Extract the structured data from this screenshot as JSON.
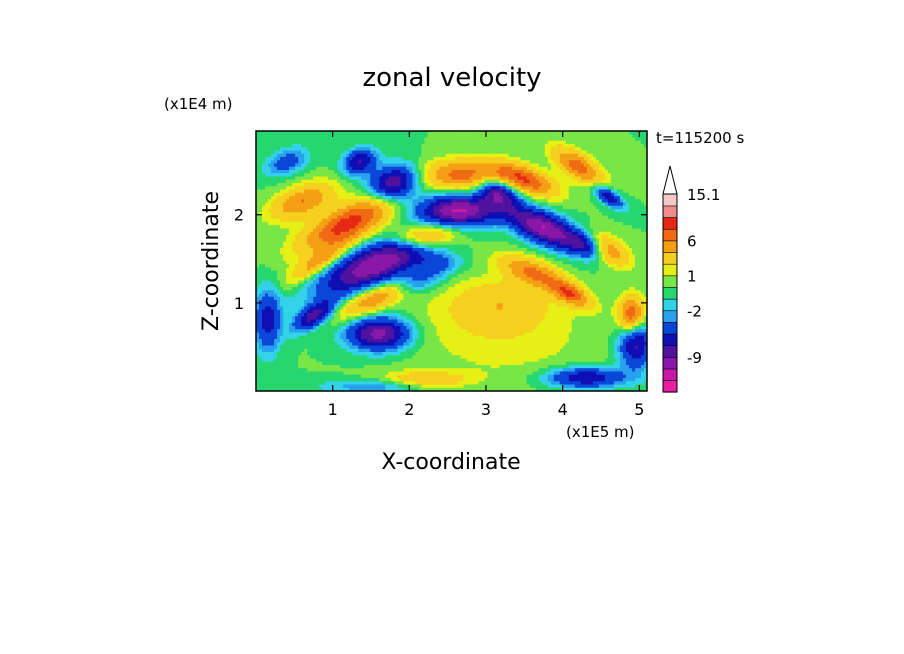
{
  "chart_data": {
    "type": "heatmap",
    "title": "zonal velocity",
    "xlabel": "X-coordinate",
    "ylabel": "Z-coordinate",
    "x_scale_label": "(x1E5 m)",
    "y_scale_label": "(x1E4 m)",
    "time_label": "t=115200 s",
    "xlim": [
      0,
      5.1
    ],
    "ylim": [
      0,
      2.95
    ],
    "x_ticks": [
      1,
      2,
      3,
      4,
      5
    ],
    "y_ticks": [
      1,
      2
    ],
    "colorbar": {
      "levels": [
        -13,
        -11,
        -9,
        -7,
        -5,
        -3,
        -2,
        -1,
        0,
        1,
        2,
        4,
        6,
        8,
        10,
        12,
        15.1
      ],
      "labeled_ticks": [
        "15.1",
        "6",
        "1",
        "-2",
        "-9"
      ],
      "labeled_values": [
        15.1,
        6,
        1,
        -2,
        -9
      ],
      "colors": [
        "#ee1ea0",
        "#c41aa5",
        "#8a17a8",
        "#50139f",
        "#0e0eb4",
        "#0a46d8",
        "#28a0f0",
        "#32d2e8",
        "#26d66e",
        "#78e646",
        "#e6f014",
        "#f5d01e",
        "#f5a014",
        "#f06a14",
        "#e62814",
        "#f08c8c",
        "#f5c8c8"
      ],
      "extend": "max"
    },
    "features": [
      {
        "x": 1.6,
        "z": 1.45,
        "sx": 0.55,
        "sz": 0.16,
        "theta": 0.35,
        "value": -11
      },
      {
        "x": 2.65,
        "z": 2.05,
        "sx": 0.35,
        "sz": 0.12,
        "theta": 0.0,
        "value": -11
      },
      {
        "x": 3.75,
        "z": 1.85,
        "sx": 0.35,
        "sz": 0.12,
        "theta": -0.35,
        "value": -11
      },
      {
        "x": 1.8,
        "z": 2.35,
        "sx": 0.22,
        "sz": 0.14,
        "theta": 0.2,
        "value": -9
      },
      {
        "x": 1.6,
        "z": 0.65,
        "sx": 0.28,
        "sz": 0.13,
        "theta": 0.0,
        "value": -10
      },
      {
        "x": 3.15,
        "z": 2.25,
        "sx": 0.18,
        "sz": 0.1,
        "theta": -0.3,
        "value": -8
      },
      {
        "x": 1.35,
        "z": 2.6,
        "sx": 0.15,
        "sz": 0.1,
        "theta": 0.3,
        "value": -7
      },
      {
        "x": 0.75,
        "z": 0.85,
        "sx": 0.2,
        "sz": 0.08,
        "theta": 0.5,
        "value": -8
      },
      {
        "x": 4.6,
        "z": 2.2,
        "sx": 0.15,
        "sz": 0.06,
        "theta": -0.5,
        "value": -7
      },
      {
        "x": 4.95,
        "z": 0.55,
        "sx": 0.15,
        "sz": 0.2,
        "theta": 0.0,
        "value": -8
      },
      {
        "x": 0.15,
        "z": 0.8,
        "sx": 0.12,
        "sz": 0.25,
        "theta": 0.0,
        "value": -6
      },
      {
        "x": 1.8,
        "z": 0.05,
        "sx": 0.6,
        "sz": 0.06,
        "theta": 0.0,
        "value": -4
      },
      {
        "x": 4.3,
        "z": 0.15,
        "sx": 0.35,
        "sz": 0.08,
        "theta": 0.0,
        "value": -7
      },
      {
        "x": 1.2,
        "z": 1.9,
        "sx": 0.45,
        "sz": 0.14,
        "theta": 0.4,
        "value": 9
      },
      {
        "x": 2.2,
        "z": 1.75,
        "sx": 0.3,
        "sz": 0.1,
        "theta": 0.1,
        "value": 8
      },
      {
        "x": 2.7,
        "z": 2.45,
        "sx": 0.35,
        "sz": 0.12,
        "theta": 0.0,
        "value": 7
      },
      {
        "x": 3.5,
        "z": 2.4,
        "sx": 0.3,
        "sz": 0.1,
        "theta": -0.3,
        "value": 8
      },
      {
        "x": 4.2,
        "z": 2.55,
        "sx": 0.25,
        "sz": 0.1,
        "theta": -0.5,
        "value": 7
      },
      {
        "x": 1.55,
        "z": 1.05,
        "sx": 0.35,
        "sz": 0.1,
        "theta": 0.4,
        "value": 6
      },
      {
        "x": 3.6,
        "z": 1.35,
        "sx": 0.3,
        "sz": 0.1,
        "theta": -0.3,
        "value": 6
      },
      {
        "x": 4.1,
        "z": 1.1,
        "sx": 0.2,
        "sz": 0.08,
        "theta": -0.4,
        "value": 7
      },
      {
        "x": 0.8,
        "z": 1.45,
        "sx": 0.3,
        "sz": 0.08,
        "theta": 0.5,
        "value": 5
      },
      {
        "x": 0.6,
        "z": 2.15,
        "sx": 0.3,
        "sz": 0.12,
        "theta": 0.3,
        "value": 6
      },
      {
        "x": 4.6,
        "z": 1.6,
        "sx": 0.2,
        "sz": 0.1,
        "theta": -0.5,
        "value": 6
      },
      {
        "x": 4.9,
        "z": 0.85,
        "sx": 0.12,
        "sz": 0.15,
        "theta": 0.0,
        "value": 9
      },
      {
        "x": 2.2,
        "z": 0.1,
        "sx": 0.4,
        "sz": 0.08,
        "theta": 0.0,
        "value": 5
      },
      {
        "x": 3.3,
        "z": 0.6,
        "sx": 0.8,
        "sz": 0.35,
        "theta": 0.0,
        "value": 1.5
      },
      {
        "x": 2.5,
        "z": 0.85,
        "sx": 0.55,
        "sz": 0.25,
        "theta": 0.0,
        "value": 0.5
      },
      {
        "x": 3.2,
        "z": 1.0,
        "sx": 0.45,
        "sz": 0.2,
        "theta": 0.0,
        "value": 3
      },
      {
        "x": 2.1,
        "z": 1.25,
        "sx": 0.25,
        "sz": 0.09,
        "theta": 0.2,
        "value": -4
      },
      {
        "x": 4.3,
        "z": 1.65,
        "sx": 0.18,
        "sz": 0.09,
        "theta": -0.3,
        "value": -5
      },
      {
        "x": 0.4,
        "z": 2.6,
        "sx": 0.2,
        "sz": 0.1,
        "theta": 0.3,
        "value": -4
      },
      {
        "x": 2.4,
        "z": 1.45,
        "sx": 0.2,
        "sz": 0.08,
        "theta": 0.0,
        "value": -3
      }
    ]
  }
}
